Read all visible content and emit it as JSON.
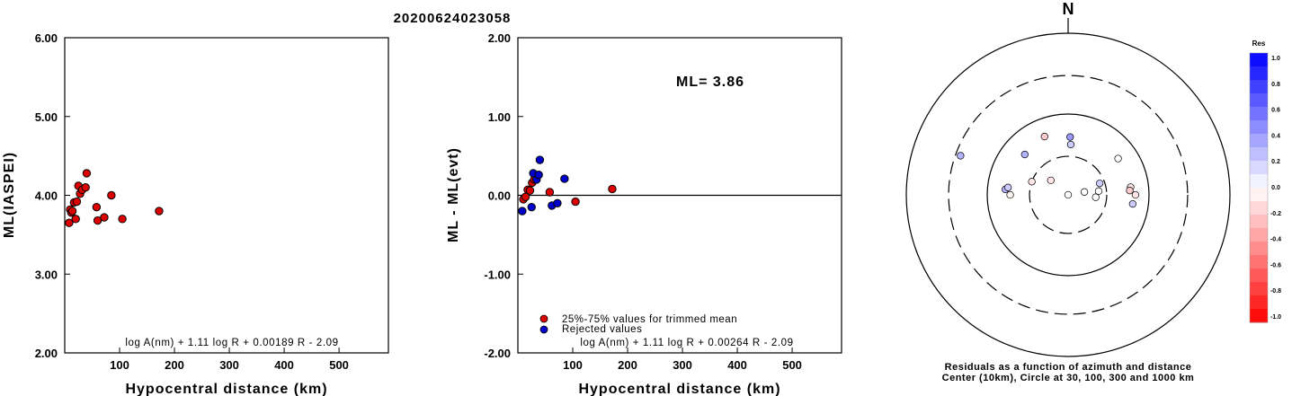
{
  "title": "20200624023058",
  "chart_data": [
    {
      "type": "scatter",
      "xlabel": "Hypocentral distance (km)",
      "ylabel": "ML(IASPEI)",
      "xlim": [
        0,
        590
      ],
      "ylim": [
        2.0,
        6.0
      ],
      "xticks": [
        100,
        200,
        300,
        400,
        500
      ],
      "yticks": [
        2.0,
        3.0,
        4.0,
        5.0,
        6.0
      ],
      "annotation": "log A(nm) + 1.11 log R + 0.00189 R - 2.09",
      "series": [
        {
          "color": "#dd0000",
          "points": [
            [
              8,
              3.65
            ],
            [
              10,
              3.82
            ],
            [
              12,
              3.78
            ],
            [
              14,
              3.8
            ],
            [
              17,
              3.91
            ],
            [
              20,
              3.7
            ],
            [
              22,
              3.92
            ],
            [
              25,
              4.12
            ],
            [
              28,
              4.02
            ],
            [
              32,
              4.07
            ],
            [
              38,
              4.1
            ],
            [
              40,
              4.28
            ],
            [
              58,
              3.85
            ],
            [
              60,
              3.68
            ],
            [
              72,
              3.72
            ],
            [
              85,
              4.0
            ],
            [
              105,
              3.7
            ],
            [
              172,
              3.8
            ]
          ]
        }
      ]
    },
    {
      "type": "scatter",
      "xlabel": "Hypocentral distance (km)",
      "ylabel": "ML - ML(evt)",
      "xlim": [
        0,
        590
      ],
      "ylim": [
        -2.0,
        2.0
      ],
      "xticks": [
        100,
        200,
        300,
        400,
        500
      ],
      "yticks": [
        -2.0,
        -1.0,
        0.0,
        1.0,
        2.0
      ],
      "reference_line": 0.0,
      "ml_label": "ML= 3.86",
      "annotation": "log A(nm) + 1.11 log R + 0.00264 R - 2.09",
      "legend": [
        {
          "label": "25%-75% values for trimmed mean",
          "color": "#dd0000"
        },
        {
          "label": "Rejected values",
          "color": "#0000cc"
        }
      ],
      "series": [
        {
          "color": "#dd0000",
          "points": [
            [
              10,
              -0.05
            ],
            [
              14,
              -0.02
            ],
            [
              18,
              0.07
            ],
            [
              22,
              0.06
            ],
            [
              26,
              0.16
            ],
            [
              30,
              0.2
            ],
            [
              58,
              0.04
            ],
            [
              105,
              -0.08
            ],
            [
              172,
              0.08
            ]
          ]
        },
        {
          "color": "#0000cc",
          "points": [
            [
              8,
              -0.2
            ],
            [
              25,
              -0.15
            ],
            [
              28,
              0.28
            ],
            [
              34,
              0.2
            ],
            [
              38,
              0.26
            ],
            [
              40,
              0.45
            ],
            [
              62,
              -0.13
            ],
            [
              72,
              -0.1
            ],
            [
              85,
              0.21
            ]
          ]
        }
      ]
    },
    {
      "type": "scatter",
      "polar": true,
      "north_label": "N",
      "rings_km": [
        10,
        30,
        100,
        300,
        1000
      ],
      "caption_line1": "Residuals as a function of azimuth and distance",
      "caption_line2": "Center (10km), Circle at 30, 100, 300 and 1000 km",
      "colorbar": {
        "title": "Res",
        "ticks": [
          "1.0",
          "0.8",
          "0.6",
          "0.4",
          "0.2",
          "0.0",
          "-0.2",
          "-0.4",
          "-0.6",
          "-0.8",
          "-1.0"
        ]
      },
      "points": [
        {
          "azimuth": 290,
          "distance_km": 260,
          "res": 0.3
        },
        {
          "azimuth": 338,
          "distance_km": 60,
          "res": -0.2
        },
        {
          "azimuth": 313,
          "distance_km": 54,
          "res": 0.3
        },
        {
          "azimuth": 2,
          "distance_km": 52,
          "res": 0.4
        },
        {
          "azimuth": 3,
          "distance_km": 42,
          "res": 0.2
        },
        {
          "azimuth": 54,
          "distance_km": 58,
          "res": 0.0
        },
        {
          "azimuth": 275,
          "distance_km": 60,
          "res": 0.3
        },
        {
          "azimuth": 277,
          "distance_km": 56,
          "res": 0.2
        },
        {
          "azimuth": 270,
          "distance_km": 52,
          "res": -0.05
        },
        {
          "azimuth": 290,
          "distance_km": 30,
          "res": -0.1
        },
        {
          "azimuth": 310,
          "distance_km": 19,
          "res": -0.1
        },
        {
          "azimuth": 75,
          "distance_km": 10,
          "res": 0.0
        },
        {
          "azimuth": 80,
          "distance_km": 16,
          "res": 0.0
        },
        {
          "azimuth": 95,
          "distance_km": 22,
          "res": 0.0
        },
        {
          "azimuth": 70,
          "distance_km": 26,
          "res": 0.2
        },
        {
          "azimuth": 83,
          "distance_km": 24,
          "res": 0.0
        },
        {
          "azimuth": 83,
          "distance_km": 60,
          "res": -0.1
        },
        {
          "azimuth": 86,
          "distance_km": 58,
          "res": -0.2
        },
        {
          "azimuth": 90,
          "distance_km": 68,
          "res": -0.1
        },
        {
          "azimuth": 98,
          "distance_km": 64,
          "res": 0.2
        }
      ]
    }
  ]
}
